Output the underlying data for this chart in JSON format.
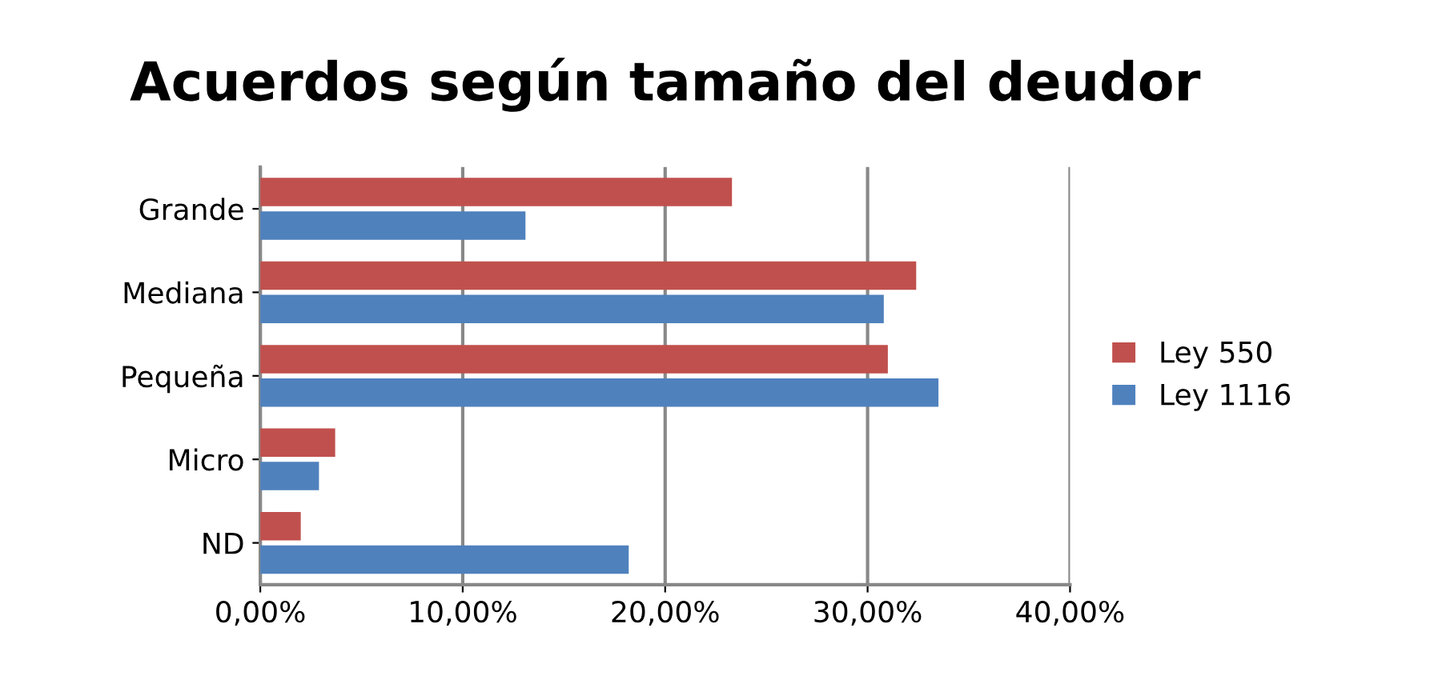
{
  "chart_data": {
    "type": "bar",
    "orientation": "horizontal",
    "title": "Acuerdos según tamaño del deudor",
    "categories": [
      "Grande",
      "Mediana",
      "Pequeña",
      "Micro",
      "ND"
    ],
    "series": [
      {
        "name": "Ley 550",
        "color": "#c0504d",
        "values": [
          23.3,
          32.4,
          31.0,
          3.7,
          2.0
        ]
      },
      {
        "name": "Ley 1116",
        "color": "#4f81bd",
        "values": [
          13.1,
          30.8,
          33.5,
          2.9,
          18.2
        ]
      }
    ],
    "xlim": [
      0,
      40
    ],
    "xticks": [
      {
        "value": 0,
        "label": "0,00%"
      },
      {
        "value": 10,
        "label": "10,00%"
      },
      {
        "value": 20,
        "label": "20,00%"
      },
      {
        "value": 30,
        "label": "30,00%"
      },
      {
        "value": 40,
        "label": "40,00%"
      }
    ],
    "grid": "x",
    "legend": "right"
  }
}
